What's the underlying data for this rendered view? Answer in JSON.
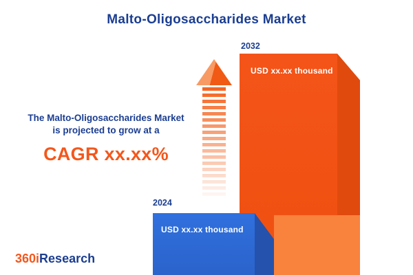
{
  "title": "Malto-Oligosaccharides Market",
  "tagline": {
    "line1": "The Malto-Oligosaccharides Market",
    "line2": "is projected to grow at a",
    "cagr": "CAGR xx.xx%"
  },
  "chart_data": {
    "type": "bar",
    "title": "Malto-Oligosaccharides Market",
    "categories": [
      "2024",
      "2032"
    ],
    "values": [
      "xx.xx",
      "xx.xx"
    ],
    "unit": "USD thousand",
    "value_labels": [
      "USD xx.xx thousand",
      "USD xx.xx thousand"
    ],
    "legend": false,
    "grid": false,
    "colors": {
      "bar_2024_front": "#2e6bd8",
      "bar_2024_side": "#2452ad",
      "bar_2032_front": "#f4531a",
      "bar_2032_side": "#e04a0d",
      "arrow": "#f4631f",
      "navy_text": "#1b3e91",
      "orange_text": "#f4571b"
    },
    "annotation": "The Malto-Oligosaccharides Market is projected to grow at a CAGR xx.xx%"
  },
  "logo": {
    "part1": "360i",
    "part2": "Research"
  }
}
